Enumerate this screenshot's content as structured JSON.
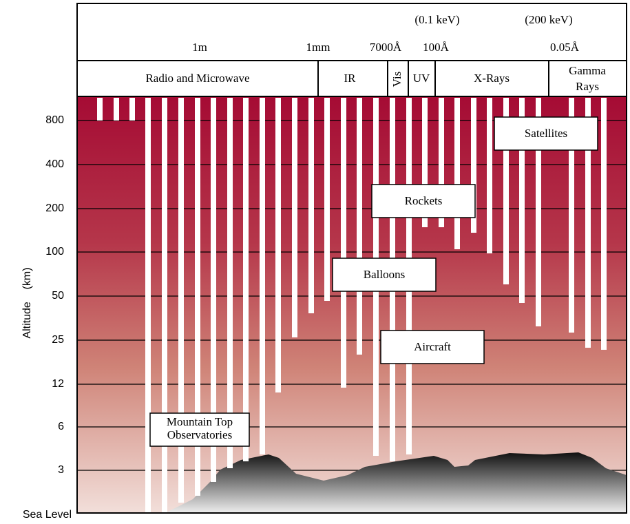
{
  "header": {
    "energies": [
      "(0.1 keV)",
      "(200 keV)"
    ],
    "wavelengths": [
      "1m",
      "1mm",
      "7000Å",
      "100Å",
      "0.05Å"
    ]
  },
  "bands": [
    "Radio and Microwave",
    "IR",
    "Vis",
    "UV",
    "X-Rays",
    "Gamma",
    "Rays"
  ],
  "axis": {
    "label": "Altitude    (km)",
    "ticks": [
      "800",
      "400",
      "200",
      "100",
      "50",
      "25",
      "12",
      "6",
      "3",
      "Sea Level"
    ]
  },
  "boxes": [
    "Satellites",
    "Rockets",
    "Balloons",
    "Aircraft",
    "Mountain Top",
    "Observatories"
  ]
}
